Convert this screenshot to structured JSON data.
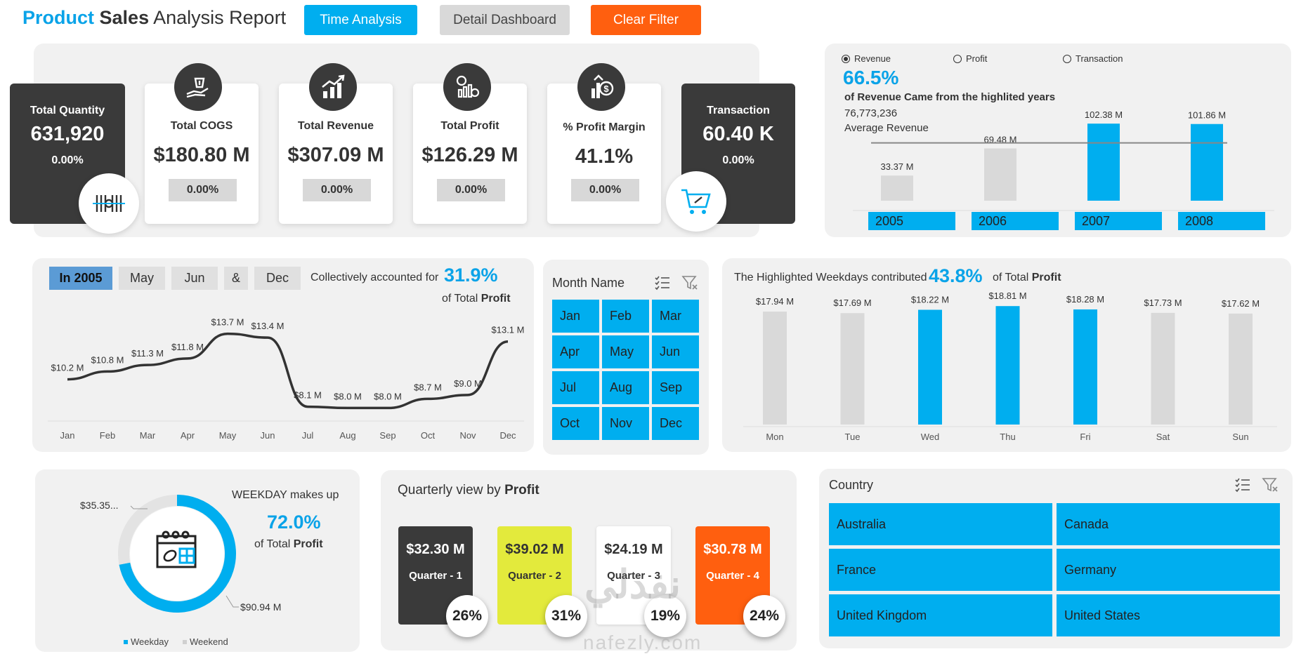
{
  "header": {
    "title_part1": "Product",
    "title_part2": "Sales",
    "title_part3": "Analysis Report"
  },
  "buttons": {
    "time_analysis": "Time Analysis",
    "detail_dashboard": "Detail Dashboard",
    "clear_filter": "Clear Filter"
  },
  "kpis": {
    "quantity": {
      "label": "Total Quantity",
      "value": "631,920",
      "pct": "0.00%"
    },
    "cogs": {
      "label": "Total COGS",
      "value": "$180.80 M",
      "pct": "0.00%"
    },
    "revenue": {
      "label": "Total Revenue",
      "value": "$307.09 M",
      "pct": "0.00%"
    },
    "profit": {
      "label": "Total Profit",
      "value": "$126.29 M",
      "pct": "0.00%"
    },
    "margin": {
      "label": "% Profit Margin",
      "value": "41.1%",
      "pct": "0.00%"
    },
    "transaction": {
      "label": "Transaction",
      "value": "60.40 K",
      "pct": "0.00%"
    }
  },
  "year_panel": {
    "radios": [
      {
        "label": "Revenue",
        "selected": true
      },
      {
        "label": "Profit",
        "selected": false
      },
      {
        "label": "Transaction",
        "selected": false
      }
    ],
    "pct": "66.5%",
    "desc": "of Revenue Came from the highlited years",
    "avg_value": "76,773,236",
    "avg_label": "Average Revenue"
  },
  "month_panel": {
    "chips": [
      "In 2005",
      "May",
      "Jun",
      "&",
      "Dec"
    ],
    "text1": "Collectively accounted for",
    "pct": "31.9%",
    "text2": "of Total",
    "text2_bold": "Profit"
  },
  "month_slicer": {
    "header": "Month Name",
    "months": [
      "Jan",
      "Feb",
      "Mar",
      "Apr",
      "May",
      "Jun",
      "Jul",
      "Aug",
      "Sep",
      "Oct",
      "Nov",
      "Dec"
    ]
  },
  "weekday_panel": {
    "text1": "The Highlighted Weekdays contributed",
    "pct": "43.8%",
    "text2": "of Total",
    "text2_bold": "Profit"
  },
  "donut_panel": {
    "text1": "WEEKDAY makes up",
    "pct": "72.0%",
    "text2": "of Total",
    "text2_bold": "Profit",
    "label_weekend": "$35.35...",
    "label_weekday": "$90.94 M"
  },
  "quarter_panel": {
    "title": "Quarterly view by",
    "title_bold": "Profit",
    "quarters": [
      {
        "value": "$32.30 M",
        "label": "Quarter - 1",
        "pct": "26%",
        "bg": "#3a3a3a",
        "fg": "#ffffff"
      },
      {
        "value": "$39.02 M",
        "label": "Quarter - 2",
        "pct": "31%",
        "bg": "#e3ea3c",
        "fg": "#333333"
      },
      {
        "value": "$24.19 M",
        "label": "Quarter - 3",
        "pct": "19%",
        "bg": "#ffffff",
        "fg": "#333333"
      },
      {
        "value": "$30.78 M",
        "label": "Quarter - 4",
        "pct": "24%",
        "bg": "#ff5f0f",
        "fg": "#ffffff"
      }
    ]
  },
  "country_slicer": {
    "header": "Country",
    "countries": [
      "Australia",
      "Canada",
      "France",
      "Germany",
      "United Kingdom",
      "United States"
    ]
  },
  "watermark": {
    "arabic": "نفذلي",
    "latin": "nafezly.com"
  },
  "colors": {
    "accent": "#00aeef",
    "dark": "#3a3a3a",
    "orange": "#ff5f0f",
    "grey": "#d9d9d9"
  },
  "chart_data": [
    {
      "type": "bar",
      "categories": [
        "2005",
        "2006",
        "2007",
        "2008"
      ],
      "values": [
        33.37,
        69.48,
        102.38,
        101.86
      ],
      "data_labels": [
        "33.37 M",
        "69.48 M",
        "102.38 M",
        "101.86 M"
      ],
      "highlighted": [
        false,
        false,
        true,
        true
      ],
      "average_line": 76.77,
      "ylim": [
        0,
        110
      ]
    },
    {
      "type": "line",
      "categories": [
        "Jan",
        "Feb",
        "Mar",
        "Apr",
        "May",
        "Jun",
        "Jul",
        "Aug",
        "Sep",
        "Oct",
        "Nov",
        "Dec"
      ],
      "values": [
        10.2,
        10.8,
        11.3,
        11.8,
        13.7,
        13.4,
        8.1,
        8.0,
        8.0,
        8.7,
        9.0,
        13.1
      ],
      "data_labels": [
        "$10.2 M",
        "$10.8 M",
        "$11.3 M",
        "$11.8 M",
        "$13.7 M",
        "$13.4 M",
        "$8.1 M",
        "$8.0 M",
        "$8.0 M",
        "$8.7 M",
        "$9.0 M",
        "$13.1 M"
      ],
      "ylim": [
        0,
        15
      ]
    },
    {
      "type": "bar",
      "categories": [
        "Mon",
        "Tue",
        "Wed",
        "Thu",
        "Fri",
        "Sat",
        "Sun"
      ],
      "values": [
        17.94,
        17.69,
        18.22,
        18.81,
        18.28,
        17.73,
        17.62
      ],
      "data_labels": [
        "$17.94 M",
        "$17.69 M",
        "$18.22 M",
        "$18.81 M",
        "$18.28 M",
        "$17.73 M",
        "$17.62 M"
      ],
      "highlighted": [
        false,
        false,
        true,
        true,
        true,
        false,
        false
      ],
      "ylim": [
        0,
        19.5
      ]
    },
    {
      "type": "pie",
      "categories": [
        "Weekday",
        "Weekend"
      ],
      "values": [
        90.94,
        35.35
      ],
      "legend": [
        "Weekday",
        "Weekend"
      ],
      "legend_placement": "bottom"
    }
  ]
}
